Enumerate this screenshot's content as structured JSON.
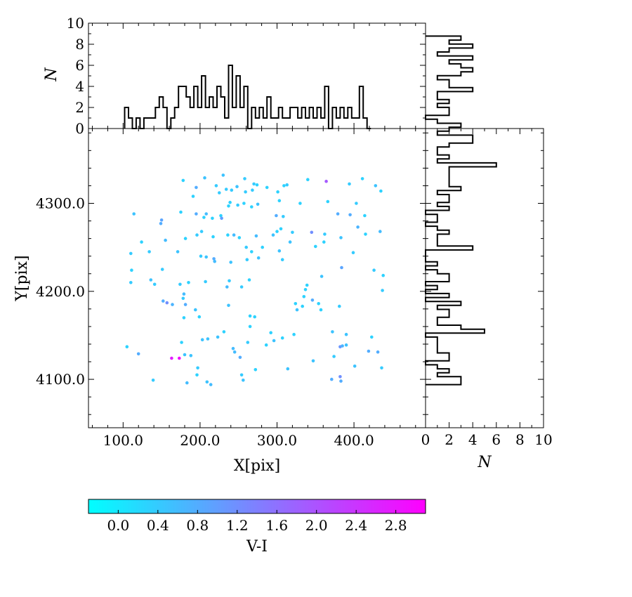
{
  "chart_data": [
    {
      "type": "scatter",
      "panel": "main",
      "xlabel": "X[pix]",
      "ylabel": "Y[pix]",
      "xlim": [
        55,
        493
      ],
      "ylim": [
        4045,
        4385
      ],
      "xticks": [
        100,
        200,
        300,
        400
      ],
      "xtick_labels": [
        "100.0",
        "200.0",
        "300.0",
        "400.0"
      ],
      "yticks": [
        4100,
        4200,
        4300
      ],
      "ytick_labels": [
        "4100.0",
        "4200.0",
        "4300.0"
      ],
      "colormap": [
        "#00ffff",
        "#ff00ff"
      ],
      "color_range": [
        -0.3,
        3.1
      ],
      "points": [
        [
          105,
          4137,
          0.3
        ],
        [
          110,
          4243,
          0.4
        ],
        [
          111,
          4224,
          0.3
        ],
        [
          110,
          4210,
          0.4
        ],
        [
          114,
          4288,
          0.5
        ],
        [
          120,
          4129,
          0.8
        ],
        [
          124,
          4256,
          0.3
        ],
        [
          134,
          4245,
          0.4
        ],
        [
          136,
          4213,
          0.5
        ],
        [
          139,
          4099,
          0.4
        ],
        [
          141,
          4208,
          0.4
        ],
        [
          149,
          4277,
          0.8
        ],
        [
          150,
          4281,
          0.9
        ],
        [
          151,
          4225,
          0.4
        ],
        [
          152,
          4189,
          0.8
        ],
        [
          155,
          4258,
          0.6
        ],
        [
          157,
          4187,
          1.2
        ],
        [
          163,
          4124,
          2.7
        ],
        [
          164,
          4185,
          0.7
        ],
        [
          171,
          4245,
          0.5
        ],
        [
          173,
          4124,
          2.9
        ],
        [
          174,
          4208,
          0.4
        ],
        [
          175,
          4290,
          0.3
        ],
        [
          176,
          4142,
          0.3
        ],
        [
          178,
          4326,
          0.3
        ],
        [
          178,
          4192,
          0.4
        ],
        [
          179,
          4197,
          0.6
        ],
        [
          179,
          4170,
          0.3
        ],
        [
          180,
          4128,
          0.5
        ],
        [
          181,
          4185,
          0.8
        ],
        [
          181,
          4260,
          0.3
        ],
        [
          183,
          4096,
          0.6
        ],
        [
          185,
          4210,
          0.3
        ],
        [
          188,
          4127,
          0.5
        ],
        [
          191,
          4308,
          0.3
        ],
        [
          194,
          4179,
          0.5
        ],
        [
          195,
          4288,
          0.8
        ],
        [
          195,
          4318,
          0.8
        ],
        [
          196,
          4264,
          0.4
        ],
        [
          196,
          4105,
          0.3
        ],
        [
          197,
          4113,
          0.4
        ],
        [
          199,
          4171,
          0.3
        ],
        [
          201,
          4240,
          0.4
        ],
        [
          202,
          4268,
          0.4
        ],
        [
          203,
          4145,
          0.5
        ],
        [
          205,
          4284,
          0.3
        ],
        [
          206,
          4329,
          0.5
        ],
        [
          207,
          4211,
          0.4
        ],
        [
          208,
          4239,
          0.5
        ],
        [
          208,
          4288,
          0.6
        ],
        [
          209,
          4097,
          0.5
        ],
        [
          210,
          4146,
          0.5
        ],
        [
          214,
          4094,
          0.6
        ],
        [
          216,
          4283,
          0.3
        ],
        [
          217,
          4262,
          0.3
        ],
        [
          218,
          4237,
          0.8
        ],
        [
          219,
          4234,
          0.6
        ],
        [
          221,
          4320,
          0.4
        ],
        [
          223,
          4148,
          0.5
        ],
        [
          225,
          4312,
          0.4
        ],
        [
          227,
          4286,
          0.3
        ],
        [
          228,
          4283,
          1.0
        ],
        [
          230,
          4332,
          0.5
        ],
        [
          231,
          4154,
          0.3
        ],
        [
          234,
          4316,
          0.4
        ],
        [
          235,
          4205,
          0.6
        ],
        [
          236,
          4264,
          0.3
        ],
        [
          237,
          4297,
          0.3
        ],
        [
          237,
          4184,
          0.5
        ],
        [
          238,
          4212,
          0.4
        ],
        [
          239,
          4301,
          0.3
        ],
        [
          240,
          4233,
          0.5
        ],
        [
          241,
          4315,
          0.4
        ],
        [
          243,
          4135,
          0.6
        ],
        [
          244,
          4264,
          0.6
        ],
        [
          245,
          4131,
          0.6
        ],
        [
          248,
          4319,
          0.5
        ],
        [
          249,
          4298,
          0.4
        ],
        [
          251,
          4261,
          0.3
        ],
        [
          252,
          4125,
          0.8
        ],
        [
          254,
          4205,
          0.4
        ],
        [
          254,
          4105,
          0.4
        ],
        [
          256,
          4099,
          0.5
        ],
        [
          257,
          4300,
          0.3
        ],
        [
          258,
          4328,
          0.4
        ],
        [
          259,
          4313,
          0.4
        ],
        [
          260,
          4250,
          0.4
        ],
        [
          261,
          4236,
          0.4
        ],
        [
          262,
          4142,
          0.4
        ],
        [
          264,
          4213,
          0.3
        ],
        [
          265,
          4172,
          0.3
        ],
        [
          265,
          4160,
          0.3
        ],
        [
          267,
          4245,
          0.3
        ],
        [
          267,
          4296,
          0.3
        ],
        [
          268,
          4315,
          0.4
        ],
        [
          270,
          4322,
          0.4
        ],
        [
          271,
          4171,
          0.3
        ],
        [
          272,
          4111,
          0.3
        ],
        [
          273,
          4263,
          0.6
        ],
        [
          274,
          4321,
          0.3
        ],
        [
          275,
          4299,
          0.5
        ],
        [
          276,
          4238,
          0.5
        ],
        [
          281,
          4250,
          0.3
        ],
        [
          286,
          4139,
          0.3
        ],
        [
          287,
          4318,
          0.3
        ],
        [
          292,
          4153,
          0.3
        ],
        [
          295,
          4264,
          0.5
        ],
        [
          296,
          4144,
          0.5
        ],
        [
          299,
          4286,
          0.8
        ],
        [
          300,
          4268,
          0.3
        ],
        [
          301,
          4313,
          0.3
        ],
        [
          303,
          4246,
          0.5
        ],
        [
          303,
          4303,
          0.3
        ],
        [
          305,
          4271,
          0.3
        ],
        [
          307,
          4147,
          0.3
        ],
        [
          307,
          4236,
          0.4
        ],
        [
          308,
          4285,
          0.4
        ],
        [
          309,
          4320,
          0.3
        ],
        [
          313,
          4321,
          0.4
        ],
        [
          314,
          4112,
          0.5
        ],
        [
          317,
          4256,
          0.5
        ],
        [
          320,
          4267,
          0.4
        ],
        [
          322,
          4151,
          0.3
        ],
        [
          324,
          4186,
          0.3
        ],
        [
          326,
          4179,
          0.5
        ],
        [
          330,
          4300,
          0.3
        ],
        [
          333,
          4183,
          0.3
        ],
        [
          335,
          4194,
          0.3
        ],
        [
          337,
          4202,
          0.3
        ],
        [
          339,
          4207,
          0.3
        ],
        [
          340,
          4327,
          0.3
        ],
        [
          345,
          4267,
          1.2
        ],
        [
          346,
          4190,
          0.8
        ],
        [
          347,
          4121,
          0.5
        ],
        [
          350,
          4251,
          0.3
        ],
        [
          354,
          4186,
          0.3
        ],
        [
          357,
          4179,
          0.3
        ],
        [
          358,
          4217,
          0.5
        ],
        [
          361,
          4256,
          0.3
        ],
        [
          362,
          4265,
          0.4
        ],
        [
          364,
          4325,
          1.9
        ],
        [
          366,
          4302,
          0.3
        ],
        [
          371,
          4100,
          0.8
        ],
        [
          372,
          4154,
          0.5
        ],
        [
          374,
          4126,
          0.4
        ],
        [
          379,
          4288,
          0.8
        ],
        [
          381,
          4183,
          0.4
        ],
        [
          382,
          4103,
          1.2
        ],
        [
          383,
          4098,
          0.8
        ],
        [
          382,
          4137,
          1.1
        ],
        [
          383,
          4261,
          0.5
        ],
        [
          384,
          4227,
          0.9
        ],
        [
          385,
          4138,
          0.7
        ],
        [
          390,
          4139,
          0.5
        ],
        [
          390,
          4151,
          0.5
        ],
        [
          394,
          4322,
          0.4
        ],
        [
          395,
          4287,
          0.8
        ],
        [
          399,
          4244,
          0.4
        ],
        [
          401,
          4115,
          0.5
        ],
        [
          403,
          4300,
          0.4
        ],
        [
          405,
          4273,
          0.7
        ],
        [
          411,
          4328,
          0.3
        ],
        [
          414,
          4286,
          0.3
        ],
        [
          415,
          4265,
          0.3
        ],
        [
          419,
          4132,
          0.8
        ],
        [
          423,
          4148,
          0.3
        ],
        [
          426,
          4224,
          0.4
        ],
        [
          428,
          4320,
          0.5
        ],
        [
          431,
          4131,
          0.8
        ],
        [
          434,
          4268,
          0.6
        ],
        [
          435,
          4314,
          0.3
        ],
        [
          436,
          4113,
          0.4
        ],
        [
          437,
          4201,
          0.4
        ],
        [
          438,
          4218,
          0.3
        ]
      ]
    },
    {
      "type": "bar",
      "panel": "top-histogram",
      "ylabel": "N",
      "ylim": [
        0,
        10
      ],
      "yticks": [
        0,
        2,
        4,
        6,
        8,
        10
      ],
      "ytick_labels": [
        "0",
        "2",
        "4",
        "6",
        "8",
        "10"
      ],
      "bin_edges_start": 102,
      "bin_width": 5.0,
      "counts": [
        2,
        1,
        0,
        1,
        0,
        1,
        1,
        1,
        2,
        3,
        2,
        0,
        1,
        2,
        4,
        4,
        3,
        2,
        4,
        2,
        5,
        2,
        3,
        2,
        4,
        3,
        1,
        6,
        2,
        5,
        2,
        4,
        0,
        2,
        1,
        2,
        1,
        3,
        1,
        1,
        2,
        1,
        1,
        2,
        2,
        1,
        2,
        1,
        2,
        1,
        2,
        1,
        4,
        0,
        2,
        1,
        2,
        1,
        2,
        1,
        1,
        4,
        1,
        0
      ]
    },
    {
      "type": "bar",
      "panel": "right-histogram",
      "orientation": "horizontal",
      "xlabel": "N",
      "xlim": [
        0,
        10
      ],
      "xticks": [
        0,
        2,
        4,
        6,
        8,
        10
      ],
      "xtick_labels": [
        "0",
        "2",
        "4",
        "6",
        "8",
        "10"
      ],
      "bin_edges_start": 4094,
      "bin_width": 4.5,
      "counts": [
        3,
        3,
        1,
        2,
        1,
        0,
        2,
        2,
        1,
        1,
        1,
        1,
        0,
        5,
        3,
        1,
        1,
        2,
        2,
        1,
        3,
        0,
        2,
        0,
        1,
        0,
        2,
        2,
        1,
        0,
        1,
        0,
        0,
        0,
        4,
        1,
        1,
        1,
        2,
        1,
        0,
        1,
        1,
        0,
        2,
        1,
        2,
        2,
        1,
        3,
        2,
        2,
        2,
        2,
        2,
        6,
        1,
        2,
        1,
        1,
        2,
        4,
        4,
        1,
        2,
        3,
        1,
        0,
        2,
        2,
        1,
        2,
        1,
        1,
        4,
        2,
        2,
        1,
        3,
        4,
        3,
        2,
        4,
        1,
        2,
        4,
        2,
        3
      ]
    },
    {
      "type": "colorbar",
      "label": "V-I",
      "range": [
        -0.3,
        3.1
      ],
      "ticks": [
        0.0,
        0.4,
        0.8,
        1.2,
        1.6,
        2.0,
        2.4,
        2.8
      ],
      "tick_labels": [
        "0.0",
        "0.4",
        "0.8",
        "1.2",
        "1.6",
        "2.0",
        "2.4",
        "2.8"
      ],
      "colors": [
        "#00ffff",
        "#ff00ff"
      ]
    }
  ]
}
